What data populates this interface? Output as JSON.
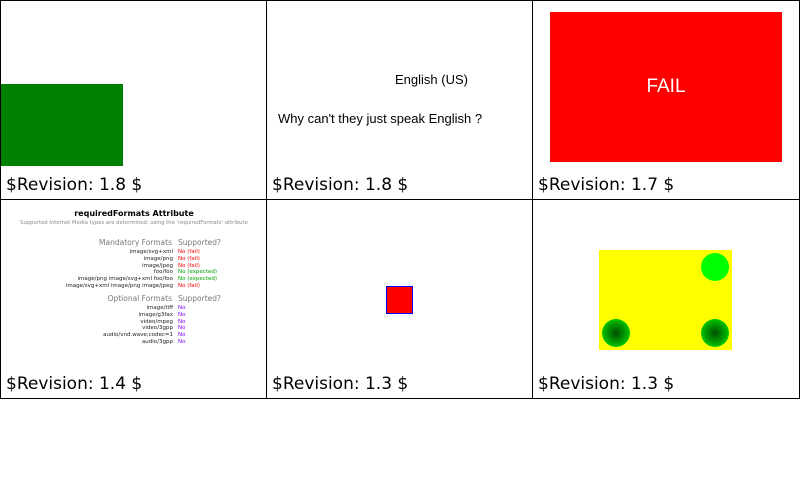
{
  "cells": [
    {
      "revision": "$Revision: 1.8 $"
    },
    {
      "revision": "$Revision: 1.8 $",
      "language": "English (US)",
      "question": "Why can't they just speak English ?"
    },
    {
      "revision": "$Revision: 1.7 $",
      "fail_text": "FAIL"
    },
    {
      "revision": "$Revision: 1.4 $",
      "title": "requiredFormats Attribute",
      "subtitle": "Supported Internet Media types are determined, using the 'requiredFormats' attribute",
      "mandatory_header": "Mandatory Formats",
      "supported_header": "Supported?",
      "mandatory": [
        {
          "format": "image/svg+xml",
          "result": "No (fail)",
          "color": "#ff0000"
        },
        {
          "format": "image/png",
          "result": "No (fail)",
          "color": "#ff0000"
        },
        {
          "format": "image/jpeg",
          "result": "No (fail)",
          "color": "#ff0000"
        },
        {
          "format": "foo/foo",
          "result": "No (expected)",
          "color": "#00a000"
        },
        {
          "format": "image/png image/svg+xml foo/foo",
          "result": "No (expected)",
          "color": "#00a000"
        },
        {
          "format": "image/svg+xml image/png image/jpeg",
          "result": "No (fail)",
          "color": "#ff0000"
        }
      ],
      "optional_header": "Optional Formats",
      "optional": [
        {
          "format": "image/tiff",
          "result": "No"
        },
        {
          "format": "image/g3fax",
          "result": "No"
        },
        {
          "format": "video/mpeg",
          "result": "No"
        },
        {
          "format": "video/3gpp",
          "result": "No"
        },
        {
          "format": "audio/vnd.wave;codec=1",
          "result": "No"
        },
        {
          "format": "audio/3gpp",
          "result": "No"
        }
      ]
    },
    {
      "revision": "$Revision: 1.3 $"
    },
    {
      "revision": "$Revision: 1.3 $"
    }
  ],
  "colors": {
    "green": "#008000",
    "fail_red": "#ff0000",
    "yellow": "#ffff00",
    "lime": "#00ff00",
    "optional_no": "#8000ff"
  }
}
